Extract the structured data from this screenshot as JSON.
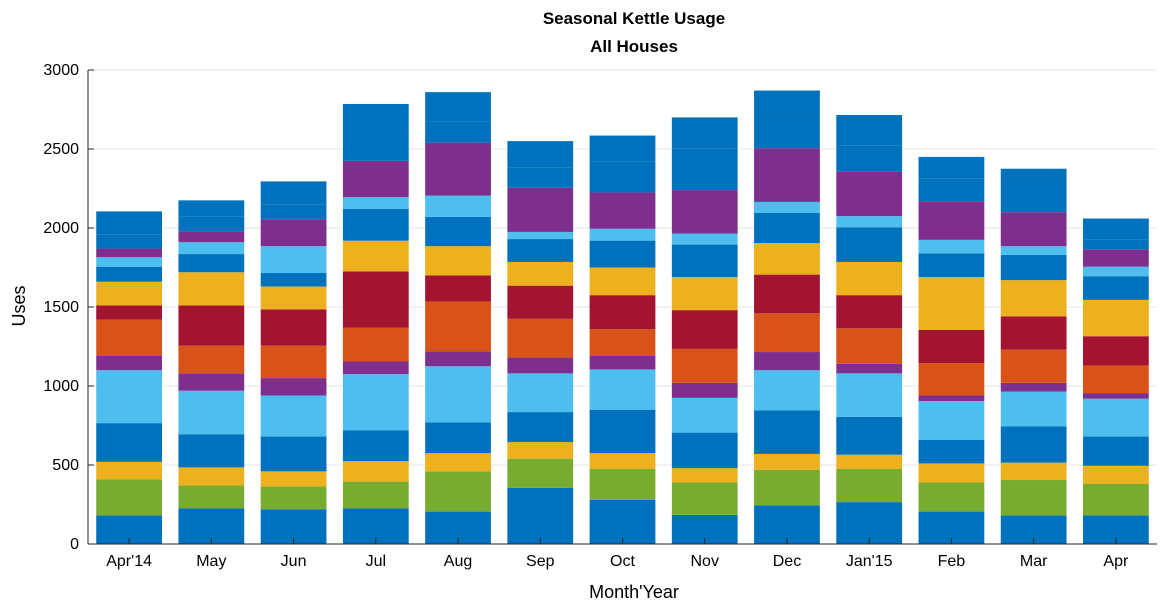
{
  "chart_data": {
    "type": "bar",
    "stacked": true,
    "title": "Seasonal Kettle Usage",
    "subtitle": "All Houses",
    "xlabel": "Month'Year",
    "ylabel": "Uses",
    "ylim": [
      0,
      3000
    ],
    "yticks": [
      0,
      500,
      1000,
      1500,
      2000,
      2500,
      3000
    ],
    "grid": true,
    "categories": [
      "Apr'14",
      "May",
      "Jun",
      "Jul",
      "Aug",
      "Sep",
      "Oct",
      "Nov",
      "Dec",
      "Jan'15",
      "Feb",
      "Mar",
      "Apr"
    ],
    "colors": [
      "#0072bd",
      "#77ac30",
      "#edb120",
      "#0072bd",
      "#4dbeee",
      "#7e2f8e",
      "#d95319",
      "#a2142f",
      "#edb120",
      "#0072bd",
      "#4dbeee",
      "#7e2f8e",
      "#0072bd"
    ],
    "series": [
      {
        "values": [
          180,
          225,
          220,
          225,
          205,
          355,
          280,
          185,
          245,
          265,
          205,
          180,
          180
        ]
      },
      {
        "values": [
          230,
          145,
          145,
          170,
          255,
          185,
          195,
          205,
          225,
          210,
          185,
          225,
          200
        ]
      },
      {
        "values": [
          110,
          115,
          95,
          130,
          115,
          105,
          100,
          90,
          100,
          90,
          120,
          110,
          115
        ]
      },
      {
        "values": [
          245,
          210,
          220,
          195,
          195,
          190,
          275,
          225,
          275,
          240,
          150,
          230,
          185
        ]
      },
      {
        "values": [
          335,
          275,
          260,
          355,
          355,
          245,
          255,
          220,
          255,
          275,
          245,
          220,
          240
        ]
      },
      {
        "values": [
          90,
          110,
          110,
          80,
          95,
          100,
          85,
          95,
          115,
          60,
          35,
          55,
          35
        ]
      },
      {
        "values": [
          230,
          175,
          205,
          215,
          315,
          245,
          170,
          215,
          245,
          225,
          205,
          210,
          175
        ]
      },
      {
        "values": [
          90,
          255,
          230,
          355,
          165,
          210,
          215,
          245,
          245,
          210,
          210,
          210,
          185
        ]
      },
      {
        "values": [
          150,
          210,
          145,
          195,
          185,
          150,
          175,
          210,
          200,
          210,
          335,
          230,
          230
        ]
      },
      {
        "values": [
          95,
          115,
          85,
          200,
          185,
          145,
          170,
          205,
          190,
          220,
          150,
          160,
          150
        ]
      },
      {
        "values": [
          60,
          75,
          170,
          75,
          135,
          45,
          75,
          70,
          70,
          70,
          85,
          55,
          60
        ]
      },
      {
        "values": [
          55,
          70,
          170,
          230,
          335,
          280,
          230,
          275,
          340,
          280,
          245,
          215,
          110
        ]
      },
      {
        "values": [
          90,
          95,
          95,
          170,
          135,
          130,
          195,
          265,
          185,
          165,
          145,
          185,
          60
        ]
      },
      {
        "values": [
          145,
          100,
          145,
          190,
          185,
          165,
          165,
          195,
          180,
          195,
          135,
          90,
          135
        ]
      }
    ]
  }
}
